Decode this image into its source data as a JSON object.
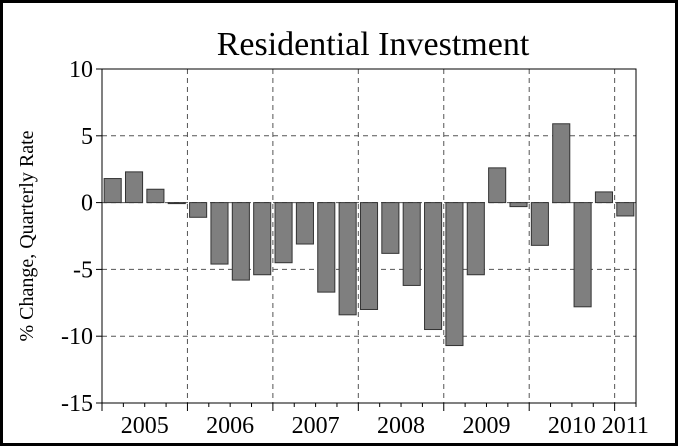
{
  "chart_data": {
    "type": "bar",
    "title": "Residential Investment",
    "ylabel": "% Change, Quarterly Rate",
    "xlabel": "",
    "ylim": [
      -15,
      10
    ],
    "yticks": [
      10,
      5,
      0,
      -5,
      -10,
      -15
    ],
    "grid": true,
    "legend": "none",
    "bar_color": "#7f7f7f",
    "year_labels": [
      "2005",
      "2006",
      "2007",
      "2008",
      "2009",
      "2010",
      "2011"
    ],
    "categories": [
      "2005 Q1",
      "2005 Q2",
      "2005 Q3",
      "2005 Q4",
      "2006 Q1",
      "2006 Q2",
      "2006 Q3",
      "2006 Q4",
      "2007 Q1",
      "2007 Q2",
      "2007 Q3",
      "2007 Q4",
      "2008 Q1",
      "2008 Q2",
      "2008 Q3",
      "2008 Q4",
      "2009 Q1",
      "2009 Q2",
      "2009 Q3",
      "2009 Q4",
      "2010 Q1",
      "2010 Q2",
      "2010 Q3",
      "2010 Q4",
      "2011 Q1"
    ],
    "values": [
      1.8,
      2.3,
      1.0,
      0.0,
      -1.1,
      -4.6,
      -5.8,
      -5.4,
      -4.5,
      -3.1,
      -6.7,
      -8.4,
      -8.0,
      -3.8,
      -6.2,
      -9.5,
      -10.7,
      -5.4,
      2.6,
      -0.3,
      -3.2,
      5.9,
      -7.8,
      0.8,
      -1.0
    ]
  }
}
